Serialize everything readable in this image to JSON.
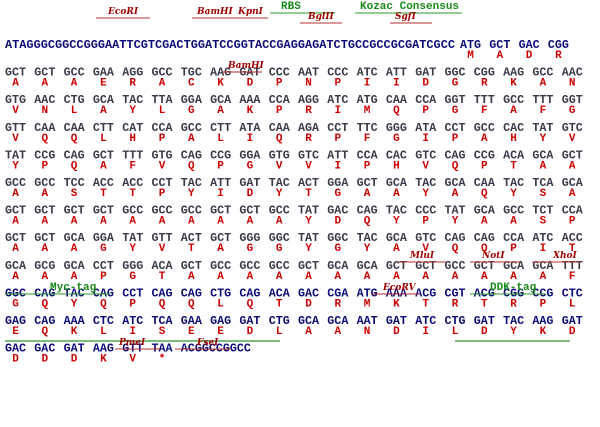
{
  "rows": [
    {
      "prefix": "ATAGGGCGGCCGGGAATTCGTCGACTGGATCCGGTACCGAGGAGATCTGCCGCCGCGATCGCC",
      "codons": [
        "ATG",
        "GCT",
        "GAC",
        "CGG"
      ],
      "aa": [
        "M",
        "A",
        "D",
        "R"
      ]
    },
    {
      "codons": [
        "GCT",
        "GCT",
        "GCC",
        "GAA",
        "AGG",
        "GCC",
        "TGC",
        "AAG",
        "GAT",
        "CCC",
        "AAT",
        "CCC",
        "ATC",
        "ATT",
        "GAT",
        "GGC",
        "CGG",
        "AAG",
        "GCC",
        "AAC"
      ],
      "aa": [
        "A",
        "A",
        "A",
        "E",
        "R",
        "A",
        "C",
        "K",
        "D",
        "P",
        "N",
        "P",
        "I",
        "I",
        "D",
        "G",
        "R",
        "K",
        "A",
        "N"
      ]
    },
    {
      "codons": [
        "GTG",
        "AAC",
        "CTG",
        "GCA",
        "TAC",
        "TTA",
        "GGA",
        "GCA",
        "AAA",
        "CCA",
        "AGG",
        "ATC",
        "ATG",
        "CAA",
        "CCA",
        "GGT",
        "TTT",
        "GCC",
        "TTT",
        "GGT"
      ],
      "aa": [
        "V",
        "N",
        "L",
        "A",
        "Y",
        "L",
        "G",
        "A",
        "K",
        "P",
        "R",
        "I",
        "M",
        "Q",
        "P",
        "G",
        "F",
        "A",
        "F",
        "G"
      ]
    },
    {
      "codons": [
        "GTT",
        "CAA",
        "CAA",
        "CTT",
        "CAT",
        "CCA",
        "GCC",
        "CTT",
        "ATA",
        "CAA",
        "AGA",
        "CCT",
        "TTC",
        "GGG",
        "ATA",
        "CCT",
        "GCC",
        "CAC",
        "TAT",
        "GTC"
      ],
      "aa": [
        "V",
        "Q",
        "Q",
        "L",
        "H",
        "P",
        "A",
        "L",
        "I",
        "Q",
        "R",
        "P",
        "F",
        "G",
        "I",
        "P",
        "A",
        "H",
        "Y",
        "V"
      ]
    },
    {
      "codons": [
        "TAT",
        "CCG",
        "CAG",
        "GCT",
        "TTT",
        "GTG",
        "CAG",
        "CCG",
        "GGA",
        "GTG",
        "GTC",
        "ATT",
        "CCA",
        "CAC",
        "GTC",
        "CAG",
        "CCG",
        "ACA",
        "GCA",
        "GCT"
      ],
      "aa": [
        "Y",
        "P",
        "Q",
        "A",
        "F",
        "V",
        "Q",
        "P",
        "G",
        "V",
        "V",
        "I",
        "P",
        "H",
        "V",
        "Q",
        "P",
        "T",
        "A",
        "A"
      ]
    },
    {
      "codons": [
        "GCC",
        "GCC",
        "TCC",
        "ACC",
        "ACC",
        "CCT",
        "TAC",
        "ATT",
        "GAT",
        "TAC",
        "ACT",
        "GGA",
        "GCT",
        "GCA",
        "TAC",
        "GCA",
        "CAA",
        "TAC",
        "TCA",
        "GCA"
      ],
      "aa": [
        "A",
        "A",
        "S",
        "T",
        "T",
        "P",
        "Y",
        "I",
        "D",
        "Y",
        "T",
        "G",
        "A",
        "A",
        "Y",
        "A",
        "Q",
        "Y",
        "S",
        "A"
      ]
    },
    {
      "codons": [
        "GCT",
        "GCT",
        "GCT",
        "GCT",
        "GCC",
        "GCC",
        "GCC",
        "GCT",
        "GCT",
        "GCC",
        "TAT",
        "GAC",
        "CAG",
        "TAC",
        "CCC",
        "TAT",
        "GCA",
        "GCC",
        "TCT",
        "CCA"
      ],
      "aa": [
        "A",
        "A",
        "A",
        "A",
        "A",
        "A",
        "A",
        "A",
        "A",
        "A",
        "Y",
        "D",
        "Q",
        "Y",
        "P",
        "Y",
        "A",
        "A",
        "S",
        "P"
      ]
    },
    {
      "codons": [
        "GCT",
        "GCT",
        "GCA",
        "GGA",
        "TAT",
        "GTT",
        "ACT",
        "GCT",
        "GGG",
        "GGC",
        "TAT",
        "GGC",
        "TAC",
        "GCA",
        "GTC",
        "CAG",
        "CAG",
        "CCA",
        "ATC",
        "ACC"
      ],
      "aa": [
        "A",
        "A",
        "A",
        "G",
        "Y",
        "V",
        "T",
        "A",
        "G",
        "G",
        "Y",
        "G",
        "Y",
        "A",
        "V",
        "Q",
        "Q",
        "P",
        "I",
        "T"
      ]
    },
    {
      "codons": [
        "GCA",
        "GCG",
        "GCA",
        "CCT",
        "GGG",
        "ACA",
        "GCT",
        "GCC",
        "GCC",
        "GCC",
        "GCT",
        "GCA",
        "GCA",
        "GCT",
        "GCT",
        "GCC",
        "GCT",
        "GCA",
        "GCA",
        "TTT"
      ],
      "aa": [
        "A",
        "A",
        "A",
        "P",
        "G",
        "T",
        "A",
        "A",
        "A",
        "A",
        "A",
        "A",
        "A",
        "A",
        "A",
        "A",
        "A",
        "A",
        "A",
        "F"
      ]
    },
    {
      "codons": [
        "GGC",
        "CAG",
        "TAC",
        "CAG",
        "CCT",
        "CAG",
        "CAG",
        "CTG",
        "CAG",
        "ACA",
        "GAC",
        "CGA",
        "ATG",
        "AAA",
        "ACG",
        "CGT",
        "ACG",
        "CGG",
        "CCG",
        "CTC"
      ],
      "aa": [
        "G",
        "Q",
        "Y",
        "Q",
        "P",
        "Q",
        "Q",
        "L",
        "Q",
        "T",
        "D",
        "R",
        "M",
        "K",
        "T",
        "R",
        "T",
        "R",
        "P",
        "L"
      ]
    },
    {
      "codons": [
        "GAG",
        "CAG",
        "AAA",
        "CTC",
        "ATC",
        "TCA",
        "GAA",
        "GAG",
        "GAT",
        "CTG",
        "GCA",
        "GCA",
        "AAT",
        "GAT",
        "ATC",
        "CTG",
        "GAT",
        "TAC",
        "AAG",
        "GAT"
      ],
      "aa": [
        "E",
        "Q",
        "K",
        "L",
        "I",
        "S",
        "E",
        "E",
        "D",
        "L",
        "A",
        "A",
        "N",
        "D",
        "I",
        "L",
        "D",
        "Y",
        "K",
        "D"
      ]
    },
    {
      "codons": [
        "GAC",
        "GAC",
        "GAT",
        "AAG",
        "GTT",
        "TAA"
      ],
      "aa": [
        "D",
        "D",
        "D",
        "K",
        "V",
        "*"
      ],
      "suffix": "ACGGCCGGCC"
    }
  ],
  "annotations": [
    {
      "label": "EcoRI",
      "kind": "enzyme"
    },
    {
      "label": "BamHI",
      "kind": "enzyme"
    },
    {
      "label": "KpnI",
      "kind": "enzyme"
    },
    {
      "label": "RBS",
      "kind": "feature"
    },
    {
      "label": "BglII",
      "kind": "enzyme"
    },
    {
      "label": "Kozac Consensus",
      "kind": "feature"
    },
    {
      "label": "SgfI",
      "kind": "enzyme"
    },
    {
      "label": "BamHI",
      "kind": "enzyme"
    },
    {
      "label": "MluI",
      "kind": "enzyme"
    },
    {
      "label": "NotI",
      "kind": "enzyme"
    },
    {
      "label": "XhoI",
      "kind": "enzyme"
    },
    {
      "label": "Myc-tag",
      "kind": "feature"
    },
    {
      "label": "EcoRV",
      "kind": "enzyme"
    },
    {
      "label": "DDK-tag",
      "kind": "feature"
    },
    {
      "label": "PmeI",
      "kind": "enzyme"
    },
    {
      "label": "FseI",
      "kind": "enzyme"
    }
  ]
}
